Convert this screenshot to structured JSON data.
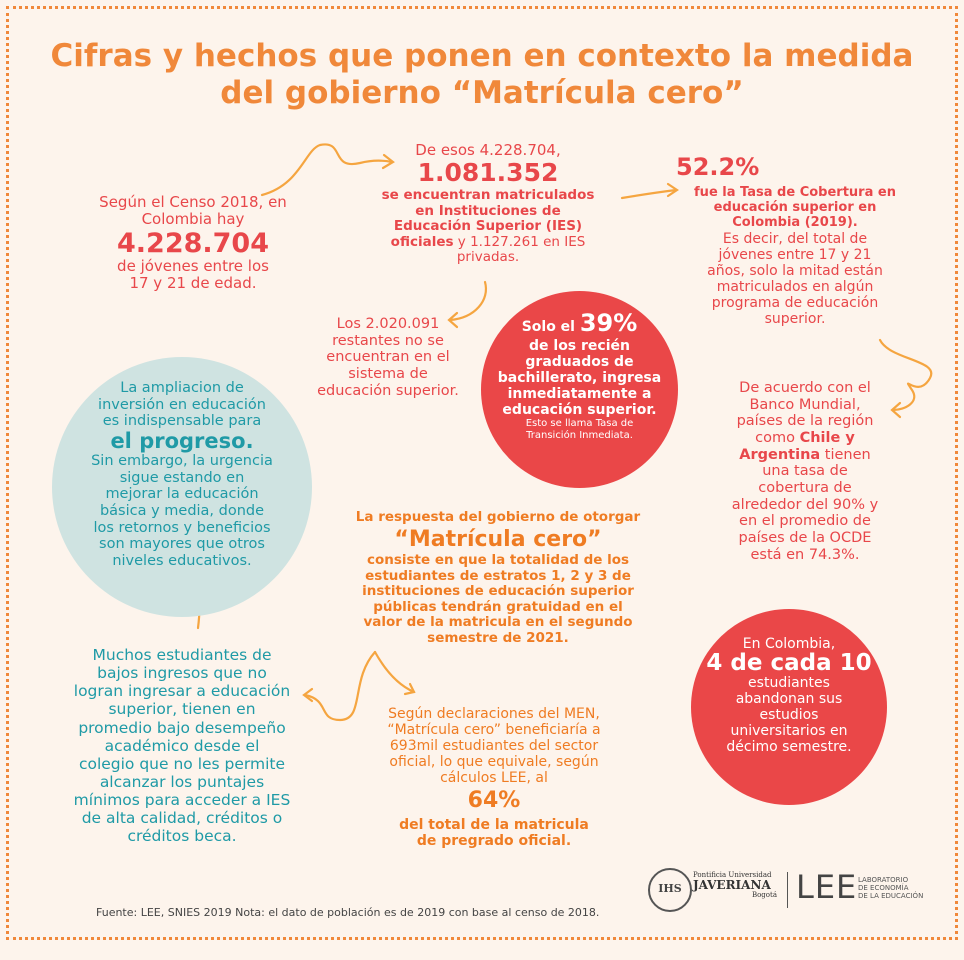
{
  "title": {
    "line1": "Cifras y hechos que ponen en contexto la medida",
    "line2": "del gobierno “Matrícula cero”"
  },
  "censo": {
    "intro1": "Según el Censo 2018, en",
    "intro2": "Colombia hay",
    "number": "4.228.704",
    "rest1": "de jóvenes entre los",
    "rest2": "17 y 21 de edad."
  },
  "matriculados": {
    "intro": "De esos 4.228.704,",
    "number": "1.081.352",
    "bold1": "se encuentran matriculados",
    "bold2": "en Instituciones de",
    "bold3": "Educación Superior (IES)",
    "bold4": "oficiales",
    "rest1": " y 1.127.261 en IES",
    "rest2": "privadas."
  },
  "cobertura": {
    "pct": "52.2%",
    "bold1": "fue la Tasa de Cobertura en",
    "bold2": "educación superior en",
    "bold3": "Colombia  (2019).",
    "l1": "Es decir, del total de",
    "l2": "jóvenes entre 17 y 21",
    "l3": "años, solo la mitad están",
    "l4": "matriculados en algún",
    "l5": "programa de educación",
    "l6": "superior."
  },
  "restantes": {
    "l1": "Los 2.020.091",
    "l2": "restantes no se",
    "l3": "encuentran en el",
    "l4": "sistema de",
    "l5": "educación superior."
  },
  "transicion": {
    "pre": "Solo el ",
    "pct": "39%",
    "l1": "de los recién",
    "l2": "graduados de",
    "l3": "bachillerato, ingresa",
    "l4": "inmediatamente a",
    "l5": "educación superior.",
    "n1": "Esto se llama Tasa de",
    "n2": "Transición Inmediata."
  },
  "progreso": {
    "l1": "La ampliacion de",
    "l2": "inversión en educación",
    "l3": "es indispensable para",
    "big": "el progreso.",
    "l4": "Sin embargo, la urgencia",
    "l5": "sigue estando en",
    "l6": "mejorar la educación",
    "l7": "básica y media, donde",
    "l8": "los retornos y beneficios",
    "l9": "son mayores que otros",
    "l10": "niveles educativos."
  },
  "banco": {
    "l1": "De acuerdo con el",
    "l2": "Banco Mundial,",
    "l3": "países de la región",
    "l4pre": "como ",
    "l4b": "Chile y",
    "l5b": "Argentina",
    "l5post": " tienen",
    "l6": "una tasa de",
    "l7": "cobertura de",
    "l8": "alrededor del 90% y",
    "l9": "en el promedio de",
    "l10": "países de la OCDE",
    "l11": "está en 74.3%."
  },
  "respuesta": {
    "l1": "La respuesta del gobierno de otorgar",
    "big": "“Matrícula cero”",
    "l2": "consiste en que la totalidad de los",
    "l3": "estudiantes de estratos 1, 2 y 3 de",
    "l4": "instituciones de educación superior",
    "l5": "públicas tendrán gratuidad en el",
    "l6": "valor de la matricula en el segundo",
    "l7": "semestre de 2021."
  },
  "bajos": {
    "l1": "Muchos estudiantes de",
    "l2": "bajos ingresos que no",
    "l3": "logran ingresar a educación",
    "l4": "superior, tienen en",
    "l5": "promedio bajo desempeño",
    "l6": "académico desde el",
    "l7": "colegio que no les permite",
    "l8": "alcanzar los puntajes",
    "l9": "mínimos para acceder a IES",
    "l10": "de alta calidad, créditos o",
    "l11": "créditos beca."
  },
  "men": {
    "l1": "Según declaraciones del MEN,",
    "l2": "“Matrícula cero” beneficiaría a",
    "l3": "693mil estudiantes del sector",
    "l4": "oficial, lo que equivale, según",
    "l5": "cálculos LEE,  al",
    "pct": "64%",
    "b1": "del total de la matricula",
    "b2": "de pregrado oficial."
  },
  "abandono": {
    "l1": "En Colombia,",
    "big": "4 de cada 10",
    "l2": "estudiantes",
    "l3": "abandonan sus",
    "l4": "estudios",
    "l5": "universitarios en",
    "l6": "décimo semestre."
  },
  "logos": {
    "javeriana1": "Pontificia Universidad",
    "javeriana2": "JAVERIANA",
    "javeriana3": "Bogotá",
    "seal": "IHS",
    "lee": "LEE",
    "lab1": "LABORATORIO",
    "lab2": "DE ECONOMÍA",
    "lab3": "DE LA EDUCACIÓN"
  },
  "footer": "Fuente: LEE, SNIES  2019  Nota: el dato de población es de 2019 con base al censo de 2018.",
  "colors": {
    "background": "#fdf4ec",
    "orange": "#f0883a",
    "red": "#e8474a",
    "teal": "#1f9aa6",
    "teal_circle": "#cfe3e1"
  }
}
